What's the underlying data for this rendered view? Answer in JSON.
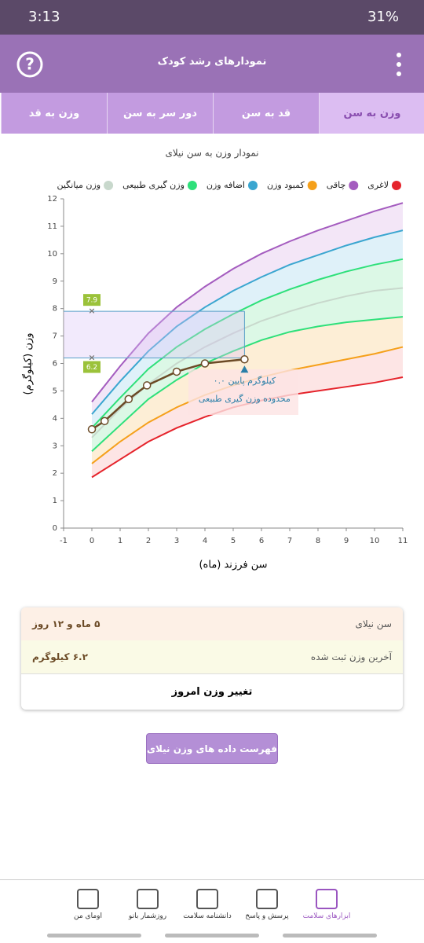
{
  "status": {
    "time": "3:13",
    "battery": "31%"
  },
  "header": {
    "title": "نمودارهای رشد کودک"
  },
  "tabs": [
    "وزن به سن",
    "قد به سن",
    "دور سر به سن",
    "وزن به قد"
  ],
  "chart_data": {
    "type": "line",
    "title": "نمودار وزن به سن نیلای",
    "x_label": "سن فرزند (ماه)",
    "y_label": "وزن (کیلوگرم)",
    "xlim": [
      -1,
      11
    ],
    "xticks": [
      -1,
      0,
      1,
      2,
      3,
      4,
      5,
      6,
      7,
      8,
      9,
      10,
      11
    ],
    "ylim": [
      0,
      12
    ],
    "yticks": [
      0,
      1,
      2,
      3,
      4,
      5,
      6,
      7,
      8,
      9,
      10,
      11,
      12
    ],
    "x": [
      0,
      1,
      2,
      3,
      4,
      5,
      6,
      7,
      8,
      9,
      10,
      11
    ],
    "series": [
      {
        "name": "لاغری",
        "color": "#e5232b",
        "values": [
          1.85,
          2.5,
          3.15,
          3.65,
          4.05,
          4.4,
          4.65,
          4.85,
          5.0,
          5.15,
          5.3,
          5.5
        ]
      },
      {
        "name": "چاقی",
        "color": "#a45cbf",
        "band": "#f1e2f6",
        "values": [
          4.6,
          5.9,
          7.1,
          8.05,
          8.8,
          9.45,
          10.0,
          10.45,
          10.85,
          11.2,
          11.55,
          11.85
        ]
      },
      {
        "name": "کمبود وزن",
        "color": "#f5a01a",
        "band": "#fde0e0",
        "values": [
          2.35,
          3.15,
          3.85,
          4.4,
          4.85,
          5.2,
          5.5,
          5.75,
          5.95,
          6.15,
          6.35,
          6.6
        ]
      },
      {
        "name": "اضافه وزن",
        "color": "#3aa6d0",
        "band": "#d9eef8",
        "values": [
          4.15,
          5.35,
          6.45,
          7.35,
          8.05,
          8.65,
          9.15,
          9.6,
          9.95,
          10.3,
          10.6,
          10.85
        ]
      },
      {
        "name": "وزن گیری طبیعی",
        "color": "#2ee07a",
        "band": "#d6f7e2",
        "values": [
          3.65,
          4.75,
          5.8,
          6.6,
          7.25,
          7.8,
          8.3,
          8.7,
          9.05,
          9.35,
          9.6,
          9.8
        ]
      },
      {
        "name": "وزن میانگین",
        "color": "#c8d8cc",
        "band": "#d6f7e2",
        "values": [
          3.3,
          4.35,
          5.25,
          6.0,
          6.6,
          7.1,
          7.55,
          7.9,
          8.2,
          8.45,
          8.65,
          8.75
        ]
      },
      {
        "color": "#2ee07a",
        "band": "#fdebcf",
        "values": [
          2.8,
          3.75,
          4.7,
          5.4,
          6.0,
          6.45,
          6.85,
          7.15,
          7.35,
          7.5,
          7.6,
          7.7
        ]
      }
    ],
    "child": {
      "color": "#6b4a26",
      "x": [
        0,
        0.45,
        1.3,
        1.95,
        3.0,
        4.0,
        5.4
      ],
      "values": [
        3.6,
        3.9,
        4.7,
        5.2,
        5.7,
        6.0,
        6.15
      ]
    },
    "range": [
      7.9,
      6.2
    ],
    "annotation": [
      "۰.۰ کیلوگرم پایین",
      "محدوده وزن گیری طبیعی"
    ]
  },
  "card": {
    "rows": [
      [
        "سن نیلای",
        "۵ ماه و ۱۲ روز"
      ],
      [
        "آخرین وزن ثبت شده",
        "۶.۲ کیلوگرم"
      ]
    ],
    "action": "تغییر وزن امروز"
  },
  "list_button": "فهرست داده های وزن نیلای",
  "nav": [
    "ابزارهای سلامت",
    "پرسش و پاسخ",
    "دانشنامه سلامت",
    "روزشمار بانو",
    "اومای من"
  ]
}
